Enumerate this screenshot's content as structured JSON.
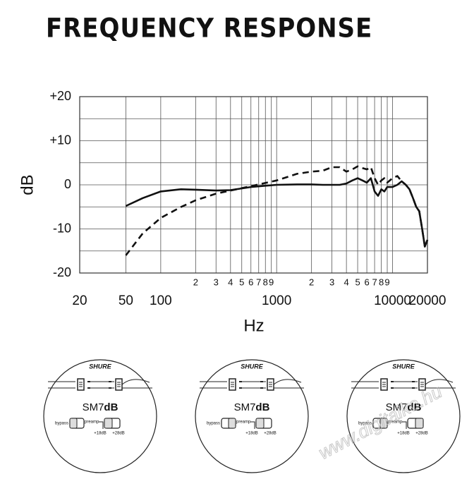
{
  "chart_data": {
    "type": "line",
    "title": "FREQUENCY RESPONSE",
    "x_label": "Hz",
    "y_label": "dB",
    "x_scale": "log",
    "grid": true,
    "xlim": [
      20,
      20000
    ],
    "ylim": [
      -20,
      20
    ],
    "xticks": [
      20,
      50,
      100,
      {
        "value": 200,
        "label": "2"
      },
      {
        "value": 300,
        "label": "3"
      },
      {
        "value": 400,
        "label": "4"
      },
      {
        "value": 500,
        "label": "5"
      },
      {
        "value": 600,
        "label": "6"
      },
      {
        "value": 700,
        "label": "7"
      },
      {
        "value": 800,
        "label": "8"
      },
      {
        "value": 900,
        "label": "9"
      },
      1000,
      {
        "value": 2000,
        "label": "2"
      },
      {
        "value": 3000,
        "label": "3"
      },
      {
        "value": 4000,
        "label": "4"
      },
      {
        "value": 5000,
        "label": "5"
      },
      {
        "value": 6000,
        "label": "6"
      },
      {
        "value": 7000,
        "label": "7"
      },
      {
        "value": 8000,
        "label": "8"
      },
      {
        "value": 9000,
        "label": "9"
      },
      10000,
      20000
    ],
    "yticks": [
      {
        "value": 20,
        "label": "+20"
      },
      {
        "value": 10,
        "label": "+10"
      },
      0,
      -10,
      -20
    ],
    "y_minor_ticks": [
      15,
      5,
      -5,
      -15
    ],
    "x": [
      50,
      70,
      100,
      150,
      200,
      300,
      400,
      600,
      1000,
      1500,
      2000,
      2500,
      3000,
      3500,
      4000,
      4500,
      5000,
      5500,
      6000,
      6500,
      7000,
      7500,
      8000,
      8500,
      9000,
      10000,
      11000,
      12000,
      13000,
      14000,
      15000,
      16000,
      17000,
      18000,
      19000,
      20000
    ],
    "series": [
      {
        "color": "#111111",
        "line_style": "solid",
        "values": [
          -4.8,
          -3,
          -1.5,
          -1,
          -1.1,
          -1.3,
          -1.2,
          -0.5,
          0,
          0.1,
          0.1,
          0,
          0,
          0,
          0.3,
          1,
          1.5,
          1,
          0.5,
          1.5,
          -1.5,
          -2.5,
          -1,
          -1.5,
          -0.5,
          -0.5,
          0,
          0.8,
          0,
          -1,
          -3,
          -5,
          -6,
          -10,
          -14,
          -12.5
        ]
      },
      {
        "color": "#111111",
        "line_style": "dashed",
        "values": [
          -16,
          -11,
          -7.5,
          -5,
          -3.5,
          -2,
          -1.3,
          -0.3,
          1,
          2.5,
          3,
          3.2,
          4,
          4,
          3,
          3.5,
          4.2,
          3.8,
          3.5,
          4,
          1.5,
          0,
          1,
          1.5,
          0.5,
          1.5,
          2,
          0.8,
          0,
          -1,
          -3,
          -5,
          -6,
          -10,
          -14,
          -12.5
        ]
      }
    ]
  },
  "diagrams": [
    {
      "brand": "SHURE",
      "model": "SM7",
      "model_bold": "dB",
      "switch_left": "bypass",
      "switch_right": "preamp",
      "gain_low": "+18dB",
      "gain_high": "+28dB"
    },
    {
      "brand": "SHURE",
      "model": "SM7",
      "model_bold": "dB",
      "switch_left": "bypass",
      "switch_right": "preamp",
      "gain_low": "+18dB",
      "gain_high": "+28dB"
    },
    {
      "brand": "SHURE",
      "model": "SM7",
      "model_bold": "dB",
      "switch_left": "bypass",
      "switch_right": "preamp",
      "gain_low": "+18dB",
      "gain_high": "+28dB"
    }
  ],
  "watermark": "www.digitalko.hu"
}
